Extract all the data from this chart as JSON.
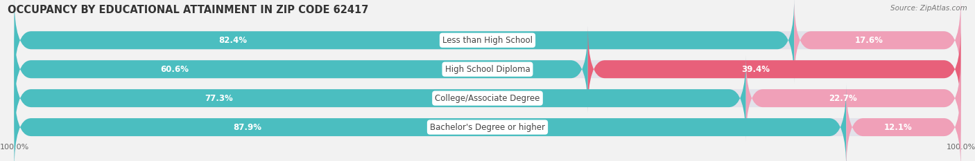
{
  "title": "OCCUPANCY BY EDUCATIONAL ATTAINMENT IN ZIP CODE 62417",
  "source": "Source: ZipAtlas.com",
  "categories": [
    "Less than High School",
    "High School Diploma",
    "College/Associate Degree",
    "Bachelor's Degree or higher"
  ],
  "owner_values": [
    82.4,
    60.6,
    77.3,
    87.9
  ],
  "renter_values": [
    17.6,
    39.4,
    22.7,
    12.1
  ],
  "owner_color": "#4BBEC0",
  "renter_color_1": "#F0A0B8",
  "renter_color_2": "#E8607A",
  "renter_colors": [
    "#F0A0B8",
    "#E8607A",
    "#F0A0B8",
    "#F0A0B8"
  ],
  "bg_color": "#F2F2F2",
  "bar_bg_color": "#E2E2EA",
  "title_fontsize": 10.5,
  "label_fontsize": 8.5,
  "cat_fontsize": 8.5,
  "tick_fontsize": 8,
  "legend_fontsize": 8.5,
  "source_fontsize": 7.5
}
